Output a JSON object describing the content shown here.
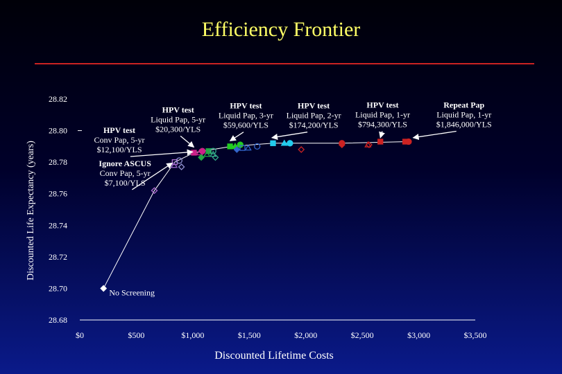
{
  "title": "Efficiency Frontier",
  "chart_data": {
    "type": "scatter",
    "title": "Efficiency Frontier",
    "xlabel": "Discounted Lifetime Costs",
    "ylabel": "Discounted Life Expectancy (years)",
    "xlim": [
      0,
      3500
    ],
    "ylim": [
      28.68,
      28.82
    ],
    "x_ticks": [
      "$0",
      "$500",
      "$1,000",
      "$1,500",
      "$2,000",
      "$2,500",
      "$3,000",
      "$3,500"
    ],
    "x_tick_values": [
      0,
      500,
      1000,
      1500,
      2000,
      2500,
      3000,
      3500
    ],
    "y_ticks": [
      "28.82",
      "28.80",
      "28.78",
      "28.76",
      "28.74",
      "28.72",
      "28.70",
      "28.68"
    ],
    "y_tick_values": [
      28.82,
      28.8,
      28.78,
      28.76,
      28.74,
      28.72,
      28.7,
      28.68
    ],
    "frontier": [
      {
        "x": 210,
        "y": 28.7
      },
      {
        "x": 660,
        "y": 28.762
      },
      {
        "x": 840,
        "y": 28.78
      },
      {
        "x": 1010,
        "y": 28.786
      },
      {
        "x": 1340,
        "y": 28.79
      },
      {
        "x": 1710,
        "y": 28.792
      },
      {
        "x": 2320,
        "y": 28.792
      },
      {
        "x": 2900,
        "y": 28.793
      }
    ],
    "points": [
      {
        "x": 210,
        "y": 28.7,
        "shape": "diamond",
        "color": "#ffffff",
        "fill": true
      },
      {
        "x": 660,
        "y": 28.762,
        "shape": "diamond",
        "color": "#b070d0",
        "fill": false
      },
      {
        "x": 840,
        "y": 28.78,
        "shape": "square",
        "color": "#b070d0",
        "fill": false
      },
      {
        "x": 835,
        "y": 28.778,
        "shape": "triangle",
        "color": "#9060c0",
        "fill": false
      },
      {
        "x": 880,
        "y": 28.781,
        "shape": "circle",
        "color": "#9090d0",
        "fill": false
      },
      {
        "x": 900,
        "y": 28.777,
        "shape": "diamond",
        "color": "#9090d0",
        "fill": false
      },
      {
        "x": 1010,
        "y": 28.786,
        "shape": "square",
        "color": "#cc2288",
        "fill": true
      },
      {
        "x": 1060,
        "y": 28.786,
        "shape": "triangle",
        "color": "#cc2288",
        "fill": false
      },
      {
        "x": 1085,
        "y": 28.787,
        "shape": "circle",
        "color": "#cc2288",
        "fill": true
      },
      {
        "x": 1075,
        "y": 28.783,
        "shape": "diamond",
        "color": "#22aa44",
        "fill": true
      },
      {
        "x": 1125,
        "y": 28.785,
        "shape": "triangle",
        "color": "#22aa44",
        "fill": false
      },
      {
        "x": 1140,
        "y": 28.787,
        "shape": "square",
        "color": "#22aa44",
        "fill": true
      },
      {
        "x": 1180,
        "y": 28.785,
        "shape": "triangle",
        "color": "#33aa88",
        "fill": false
      },
      {
        "x": 1180,
        "y": 28.787,
        "shape": "circle",
        "color": "#33aa88",
        "fill": false
      },
      {
        "x": 1200,
        "y": 28.783,
        "shape": "diamond",
        "color": "#33aa88",
        "fill": false
      },
      {
        "x": 1330,
        "y": 28.79,
        "shape": "square",
        "color": "#22cc22",
        "fill": true
      },
      {
        "x": 1375,
        "y": 28.79,
        "shape": "triangle",
        "color": "#22cc22",
        "fill": true
      },
      {
        "x": 1420,
        "y": 28.791,
        "shape": "circle",
        "color": "#22cc22",
        "fill": true
      },
      {
        "x": 1390,
        "y": 28.788,
        "shape": "diamond",
        "color": "#3366cc",
        "fill": true
      },
      {
        "x": 1440,
        "y": 28.789,
        "shape": "square",
        "color": "#3366cc",
        "fill": false
      },
      {
        "x": 1490,
        "y": 28.789,
        "shape": "triangle",
        "color": "#3366cc",
        "fill": false
      },
      {
        "x": 1570,
        "y": 28.79,
        "shape": "circle",
        "color": "#3366cc",
        "fill": false
      },
      {
        "x": 1710,
        "y": 28.792,
        "shape": "square",
        "color": "#22ccee",
        "fill": true
      },
      {
        "x": 1810,
        "y": 28.792,
        "shape": "triangle",
        "color": "#22ccee",
        "fill": true
      },
      {
        "x": 1860,
        "y": 28.792,
        "shape": "circle",
        "color": "#22ccee",
        "fill": true
      },
      {
        "x": 1960,
        "y": 28.788,
        "shape": "diamond",
        "color": "#cc2222",
        "fill": false
      },
      {
        "x": 2320,
        "y": 28.791,
        "shape": "diamond",
        "color": "#cc2222",
        "fill": true
      },
      {
        "x": 2320,
        "y": 28.792,
        "shape": "circle",
        "color": "#cc2222",
        "fill": true
      },
      {
        "x": 2550,
        "y": 28.791,
        "shape": "triangle",
        "color": "#cc2222",
        "fill": false
      },
      {
        "x": 2560,
        "y": 28.791,
        "shape": "diamond",
        "color": "#cc2222",
        "fill": false
      },
      {
        "x": 2660,
        "y": 28.793,
        "shape": "square",
        "color": "#cc2222",
        "fill": true
      },
      {
        "x": 2880,
        "y": 28.793,
        "shape": "square",
        "color": "#cc2222",
        "fill": true
      },
      {
        "x": 2910,
        "y": 28.793,
        "shape": "circle",
        "color": "#cc2222",
        "fill": true
      }
    ],
    "annotations": [
      {
        "lines": [
          "No Screening"
        ],
        "bold_first": false,
        "x": 260,
        "y": 28.6955,
        "anchor": "start"
      },
      {
        "lines": [
          "Ignore ASCUS",
          "Conv Pap, 5-yr",
          "$7,100/YLS"
        ],
        "bold_first": true,
        "x": 400,
        "y": 28.7775,
        "anchor": "middle",
        "arrow_to": [
          820,
          28.7795
        ]
      },
      {
        "lines": [
          "HPV test",
          "Conv Pap, 5-yr",
          "$12,100/YLS"
        ],
        "bold_first": true,
        "x": 350,
        "y": 28.7985,
        "anchor": "middle",
        "arrow_to": [
          1000,
          28.7865
        ]
      },
      {
        "lines": [
          "HPV test",
          "Liquid Pap, 5-yr",
          "$20,300/YLS"
        ],
        "bold_first": true,
        "x": 870,
        "y": 28.8115,
        "anchor": "middle",
        "arrow_to": [
          1010,
          28.7895
        ]
      },
      {
        "lines": [
          "HPV test",
          "Liquid Pap, 3-yr",
          "$59,600/YLS"
        ],
        "bold_first": true,
        "x": 1470,
        "y": 28.814,
        "anchor": "middle",
        "arrow_to": [
          1330,
          28.7935
        ]
      },
      {
        "lines": [
          "HPV test",
          "Liquid Pap, 2-yr",
          "$174,200/YLS"
        ],
        "bold_first": true,
        "x": 2070,
        "y": 28.814,
        "anchor": "middle",
        "arrow_to": [
          1700,
          28.7955
        ]
      },
      {
        "lines": [
          "HPV test",
          "Liquid Pap, 1-yr",
          "$794,300/YLS"
        ],
        "bold_first": true,
        "x": 2680,
        "y": 28.8145,
        "anchor": "middle",
        "arrow_to": [
          2660,
          28.7955
        ]
      },
      {
        "lines": [
          "Repeat Pap",
          "Liquid Pap, 1-yr",
          "$1,846,000/YLS"
        ],
        "bold_first": true,
        "x": 3400,
        "y": 28.8145,
        "anchor": "middle",
        "arrow_to": [
          2950,
          28.7955
        ]
      }
    ]
  },
  "colors": {
    "title": "#ffff66",
    "rule": "#cc2222",
    "axis": "#ffffff",
    "line": "#ffffff"
  }
}
